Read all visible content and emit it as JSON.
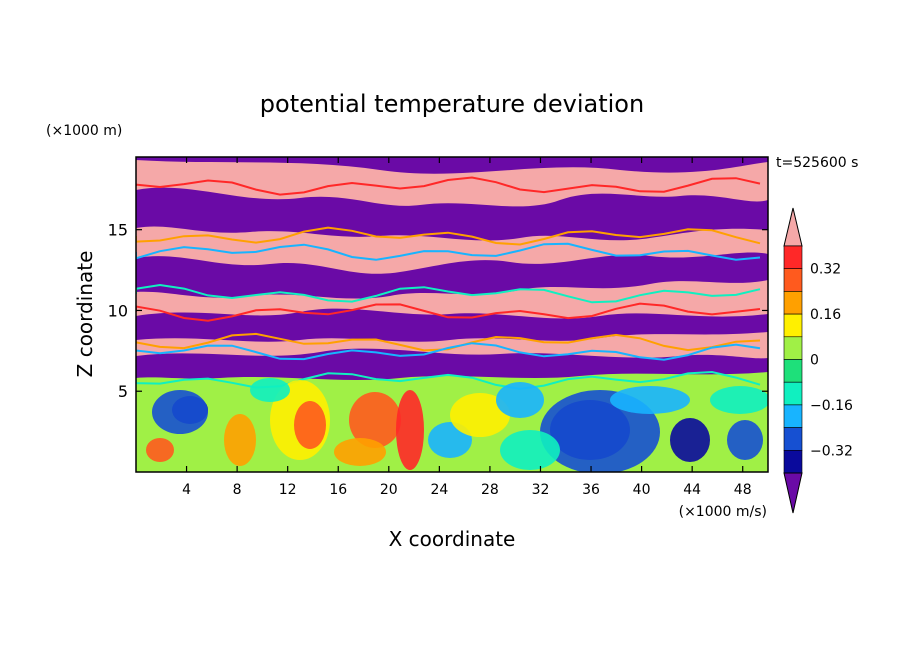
{
  "chart_data": {
    "type": "heatmap",
    "title": "potential temperature deviation",
    "xlabel": "X coordinate",
    "ylabel": "Z coordinate",
    "x_unit": "(×1000 m/s)",
    "y_unit": "(×1000 m)",
    "time_label": "t=525600 s",
    "xlim": [
      0,
      50
    ],
    "ylim": [
      0,
      19.5
    ],
    "xticks": [
      4,
      8,
      12,
      16,
      20,
      24,
      28,
      32,
      36,
      40,
      44,
      48
    ],
    "yticks": [
      5,
      10,
      15
    ],
    "colorbar": {
      "ticks": [
        "0.32",
        "0.16",
        "0",
        "−0.16",
        "−0.32"
      ],
      "tick_values": [
        0.32,
        0.16,
        0,
        -0.16,
        -0.32
      ],
      "levels": [
        -0.4,
        -0.32,
        -0.24,
        -0.16,
        -0.08,
        0,
        0.08,
        0.16,
        0.24,
        0.32,
        0.4
      ],
      "colors": [
        "#6a0aa6",
        "#0a0a9c",
        "#1650d2",
        "#18b4ff",
        "#10f0c0",
        "#1ee07a",
        "#a0f046",
        "#fff000",
        "#ffa000",
        "#ff5a1e",
        "#ff2828",
        "#f5a8a8"
      ],
      "extend": "both"
    }
  }
}
